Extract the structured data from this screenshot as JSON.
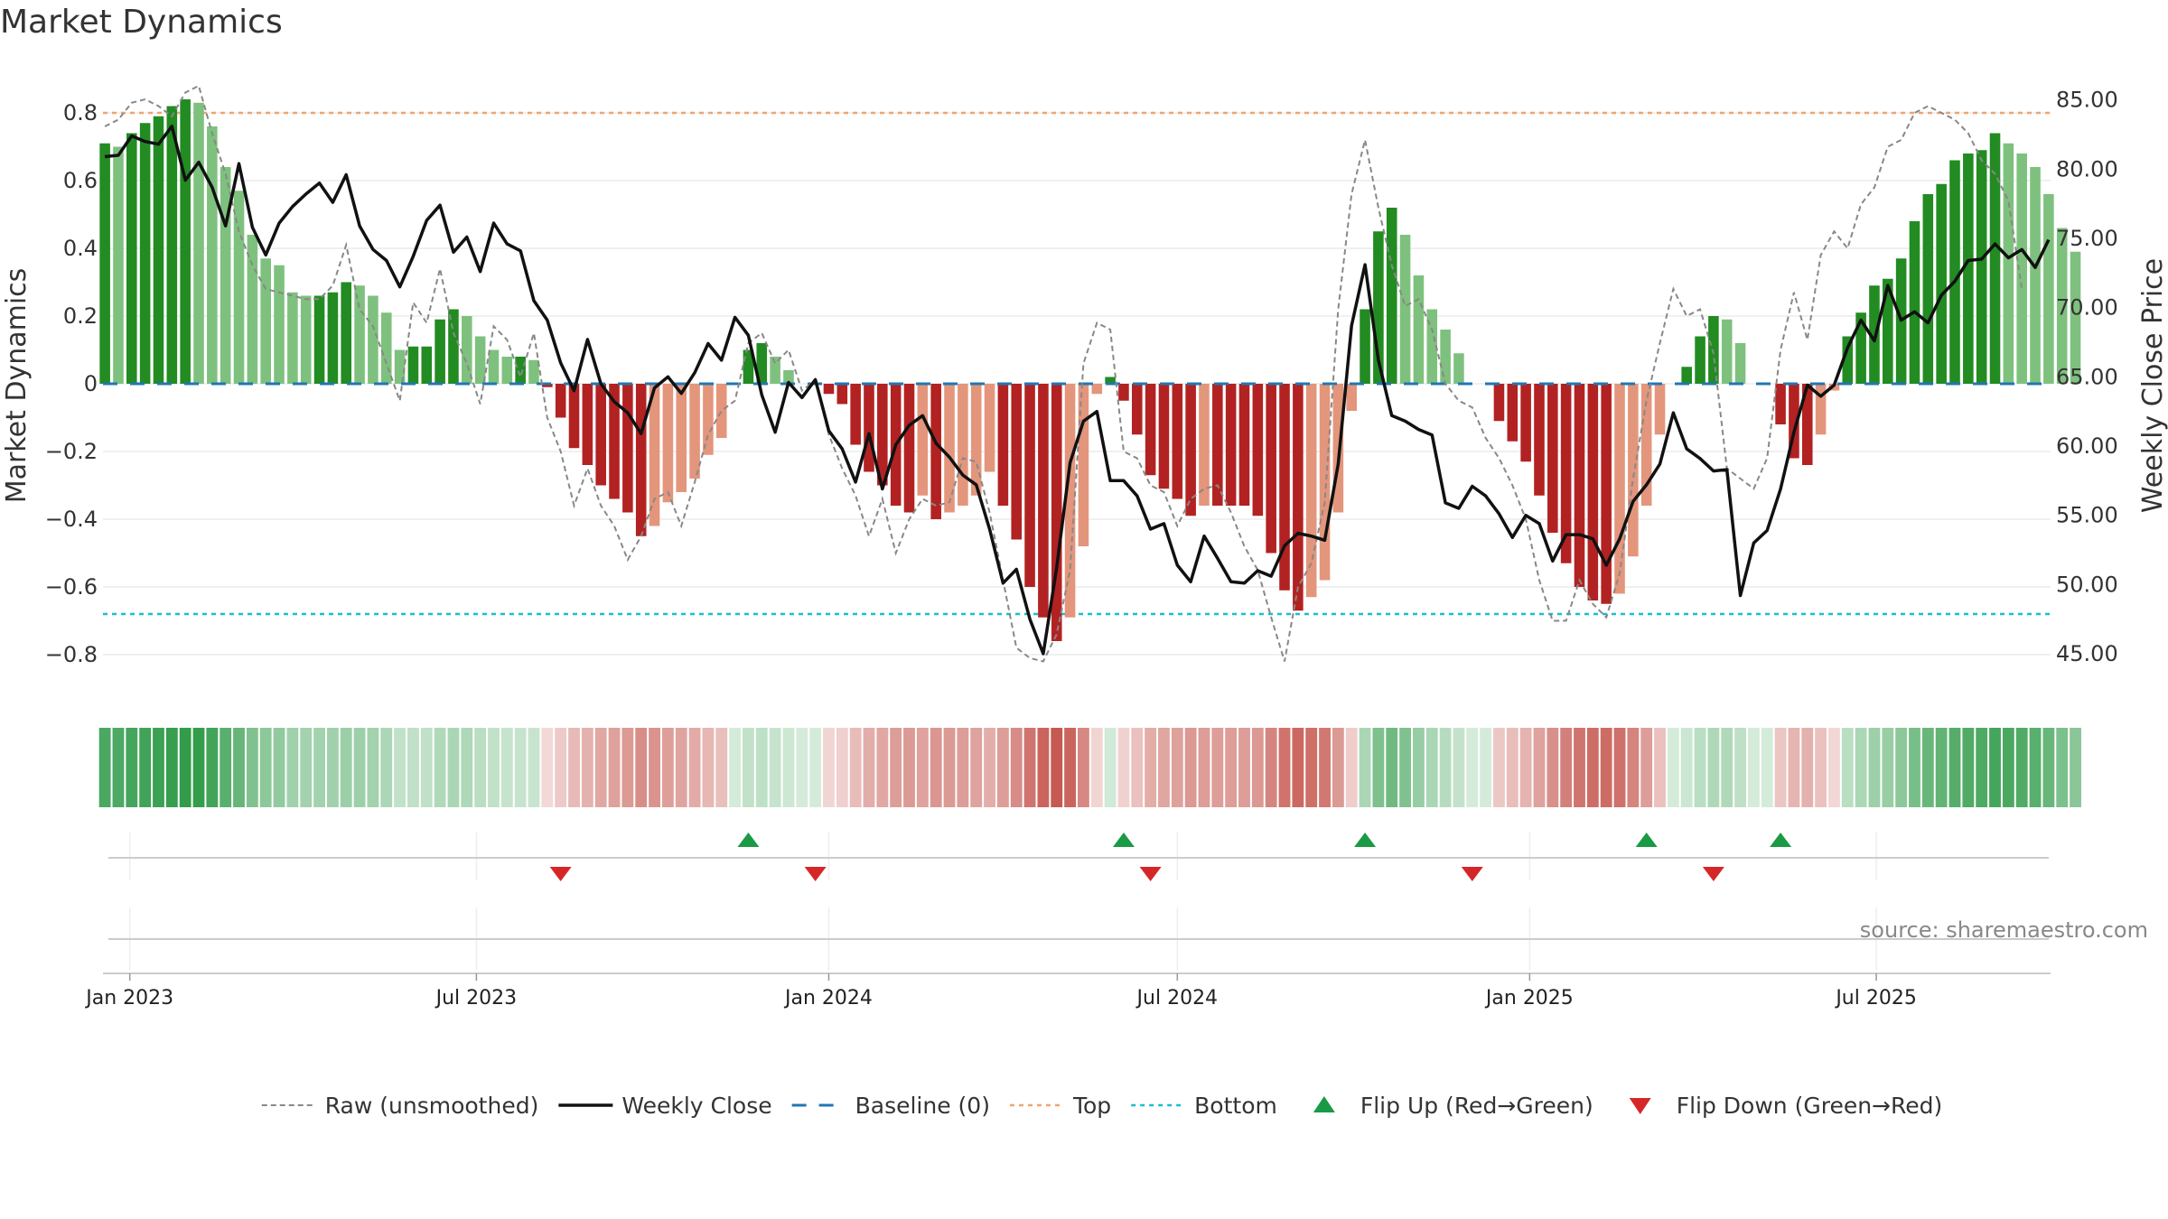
{
  "title": "Market Dynamics",
  "source": "source: sharemaestro.com",
  "chart_data": {
    "type": "bar",
    "ylabel_left": "Market Dynamics",
    "ylabel_right": "Weekly Close Price",
    "ylim_left": [
      -0.92,
      0.92
    ],
    "ylim_right": [
      42.0,
      87.0
    ],
    "yticks_left": [
      "0.8",
      "0.6",
      "0.4",
      "0.2",
      "0",
      "−0.2",
      "−0.4",
      "−0.6",
      "−0.8"
    ],
    "yticks_left_values": [
      0.8,
      0.6,
      0.4,
      0.2,
      0,
      -0.2,
      -0.4,
      -0.6,
      -0.8
    ],
    "yticks_right": [
      "85.00",
      "80.00",
      "75.00",
      "70.00",
      "65.00",
      "60.00",
      "55.00",
      "50.00",
      "45.00"
    ],
    "yticks_right_values": [
      85,
      80,
      75,
      70,
      65,
      60,
      55,
      50,
      45
    ],
    "x_ticks": [
      "Jan 2023",
      "Jul 2023",
      "Jan 2024",
      "Jul 2024",
      "Jan 2025",
      "Jul 2025"
    ],
    "x_tick_dates": [
      "2023-01-01",
      "2023-07-01",
      "2024-01-01",
      "2024-07-01",
      "2025-01-01",
      "2025-07-01"
    ],
    "x_range": [
      "2022-12-18",
      "2025-09-30"
    ],
    "first_week": "2022-12-19",
    "top_level": 0.8,
    "bottom_level": -0.68,
    "baseline": 0,
    "grid": true,
    "legend_position": "bottom",
    "colors": {
      "strong_green": "#228B22",
      "light_green": "#7ec17e",
      "strong_red": "#b22222",
      "light_red": "#e3967c",
      "close": "#111111",
      "raw": "#888888",
      "baseline": "#1f77b4",
      "top": "#f0a46e",
      "bottom": "#17becf",
      "flip_up": "#1a9a45",
      "flip_down": "#d62728"
    },
    "legend": [
      {
        "label": "Raw (unsmoothed)",
        "kind": "raw"
      },
      {
        "label": "Weekly Close",
        "kind": "close"
      },
      {
        "label": "Baseline (0)",
        "kind": "baseline"
      },
      {
        "label": "Top",
        "kind": "top"
      },
      {
        "label": "Bottom",
        "kind": "bottom"
      },
      {
        "label": "Flip Up (Red→Green)",
        "kind": "flip_up"
      },
      {
        "label": "Flip Down (Green→Red)",
        "kind": "flip_down"
      }
    ],
    "series": [
      {
        "name": "Market Dynamics",
        "kind": "bar",
        "values": [
          0.71,
          0.7,
          0.74,
          0.77,
          0.79,
          0.82,
          0.84,
          0.83,
          0.76,
          0.64,
          0.57,
          0.44,
          0.37,
          0.35,
          0.27,
          0.26,
          0.26,
          0.27,
          0.3,
          0.29,
          0.26,
          0.21,
          0.1,
          0.11,
          0.11,
          0.19,
          0.22,
          0.2,
          0.14,
          0.1,
          0.08,
          0.08,
          0.07,
          -0.01,
          -0.1,
          -0.19,
          -0.24,
          -0.3,
          -0.34,
          -0.38,
          -0.45,
          -0.42,
          -0.35,
          -0.32,
          -0.28,
          -0.21,
          -0.16,
          0.0,
          0.1,
          0.12,
          0.08,
          0.04,
          0.0,
          0.0,
          -0.03,
          -0.06,
          -0.18,
          -0.26,
          -0.3,
          -0.36,
          -0.38,
          -0.33,
          -0.4,
          -0.38,
          -0.36,
          -0.33,
          -0.26,
          -0.36,
          -0.46,
          -0.6,
          -0.69,
          -0.76,
          -0.69,
          -0.48,
          -0.03,
          0.02,
          -0.05,
          -0.15,
          -0.27,
          -0.31,
          -0.34,
          -0.39,
          -0.36,
          -0.36,
          -0.36,
          -0.36,
          -0.39,
          -0.5,
          -0.61,
          -0.67,
          -0.63,
          -0.58,
          -0.38,
          -0.08,
          0.22,
          0.45,
          0.52,
          0.44,
          0.32,
          0.22,
          0.16,
          0.09,
          0.0,
          0.0,
          -0.11,
          -0.17,
          -0.23,
          -0.33,
          -0.44,
          -0.53,
          -0.6,
          -0.64,
          -0.65,
          -0.62,
          -0.51,
          -0.36,
          -0.15,
          0.0,
          0.05,
          0.14,
          0.2,
          0.19,
          0.12,
          0.0,
          0.0,
          -0.12,
          -0.22,
          -0.24,
          -0.15,
          -0.02,
          0.14,
          0.21,
          0.29,
          0.31,
          0.37,
          0.48,
          0.56,
          0.59,
          0.66,
          0.68,
          0.69,
          0.74,
          0.71,
          0.68,
          0.64,
          0.56,
          0.46,
          0.39
        ]
      },
      {
        "name": "Raw (unsmoothed)",
        "kind": "line",
        "values": [
          0.76,
          0.78,
          0.83,
          0.84,
          0.82,
          0.79,
          0.86,
          0.88,
          0.74,
          0.62,
          0.45,
          0.35,
          0.28,
          0.27,
          0.26,
          0.25,
          0.25,
          0.29,
          0.41,
          0.22,
          0.17,
          0.06,
          -0.05,
          0.24,
          0.18,
          0.34,
          0.15,
          0.06,
          -0.06,
          0.17,
          0.13,
          0.02,
          0.15,
          -0.1,
          -0.2,
          -0.36,
          -0.25,
          -0.36,
          -0.42,
          -0.52,
          -0.45,
          -0.34,
          -0.32,
          -0.42,
          -0.29,
          -0.15,
          -0.08,
          -0.05,
          0.12,
          0.15,
          0.06,
          0.1,
          -0.02,
          0.01,
          -0.15,
          -0.25,
          -0.33,
          -0.45,
          -0.34,
          -0.5,
          -0.4,
          -0.34,
          -0.36,
          -0.35,
          -0.22,
          -0.23,
          -0.38,
          -0.58,
          -0.78,
          -0.81,
          -0.82,
          -0.74,
          -0.55,
          0.06,
          0.18,
          0.16,
          -0.2,
          -0.22,
          -0.3,
          -0.32,
          -0.42,
          -0.34,
          -0.31,
          -0.3,
          -0.38,
          -0.48,
          -0.55,
          -0.69,
          -0.82,
          -0.6,
          -0.53,
          -0.35,
          0.22,
          0.56,
          0.72,
          0.52,
          0.35,
          0.23,
          0.25,
          0.16,
          0.0,
          -0.05,
          -0.07,
          -0.16,
          -0.22,
          -0.3,
          -0.4,
          -0.58,
          -0.7,
          -0.7,
          -0.58,
          -0.65,
          -0.69,
          -0.56,
          -0.28,
          -0.05,
          0.12,
          0.28,
          0.2,
          0.22,
          0.09,
          -0.25,
          -0.28,
          -0.31,
          -0.22,
          0.1,
          0.27,
          0.13,
          0.38,
          0.45,
          0.4,
          0.53,
          0.58,
          0.7,
          0.72,
          0.8,
          0.82,
          0.8,
          0.78,
          0.74,
          0.66,
          0.62,
          0.54,
          0.28
        ]
      },
      {
        "name": "Weekly Close",
        "kind": "line",
        "values": [
          80.9,
          81.0,
          82.4,
          82.0,
          81.8,
          83.1,
          79.2,
          80.5,
          78.7,
          75.9,
          80.4,
          75.8,
          73.8,
          76.1,
          77.3,
          78.2,
          79.0,
          77.6,
          79.6,
          75.9,
          74.2,
          73.4,
          71.5,
          73.7,
          76.3,
          77.4,
          74.0,
          75.1,
          72.6,
          76.1,
          74.6,
          74.1,
          70.5,
          69.1,
          66.0,
          64.0,
          67.7,
          64.5,
          63.2,
          62.4,
          60.9,
          64.2,
          65.0,
          63.8,
          65.3,
          67.4,
          66.2,
          69.3,
          68.0,
          63.7,
          61.0,
          64.6,
          63.5,
          64.8,
          61.1,
          59.8,
          57.4,
          60.9,
          56.9,
          60.1,
          61.5,
          62.2,
          60.2,
          59.2,
          57.9,
          57.2,
          54.0,
          50.1,
          51.1,
          47.5,
          45.0,
          51.2,
          58.8,
          61.8,
          62.5,
          57.5,
          57.5,
          56.4,
          54.0,
          54.4,
          51.4,
          50.2,
          53.5,
          51.9,
          50.2,
          50.1,
          51.0,
          50.6,
          52.8,
          53.7,
          53.5,
          53.2,
          58.7,
          68.7,
          73.1,
          66.2,
          62.2,
          61.8,
          61.2,
          60.8,
          55.9,
          55.5,
          57.1,
          56.4,
          55.1,
          53.4,
          55.0,
          54.4,
          51.7,
          53.6,
          53.6,
          53.3,
          51.4,
          53.3,
          56.0,
          57.2,
          58.7,
          62.4,
          59.8,
          59.1,
          58.2,
          58.3,
          49.2,
          53.0,
          53.9,
          56.9,
          61.0,
          64.4,
          63.6,
          64.4,
          67.1,
          69.1,
          67.6,
          71.6,
          69.1,
          69.7,
          68.9,
          70.9,
          71.9,
          73.4,
          73.5,
          74.6,
          73.6,
          74.2,
          72.9,
          74.9
        ]
      }
    ],
    "gauge": {
      "description_levels": "heat strip: bar value per week drives color"
    },
    "flips_up": [
      "2023-11-20",
      "2024-06-03",
      "2024-10-07",
      "2025-03-03",
      "2025-05-12"
    ],
    "flips_down": [
      "2023-08-14",
      "2023-12-25",
      "2024-06-17",
      "2024-12-02",
      "2025-04-07"
    ]
  }
}
